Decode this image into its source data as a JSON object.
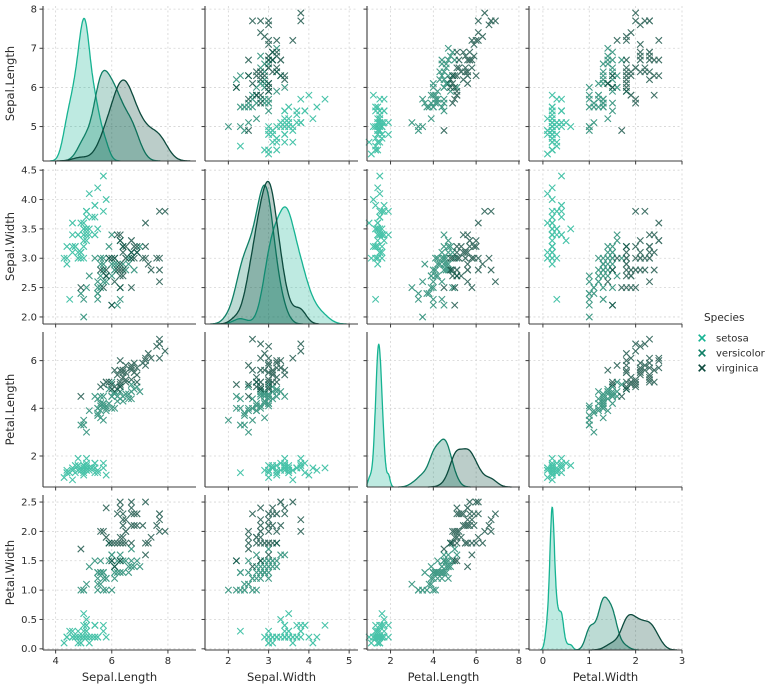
{
  "chart_data": {
    "type": "scatter",
    "subtype": "pairplot-matrix",
    "diagonal": "kde",
    "marker": "x",
    "grid": "dashed",
    "title": "",
    "colors": {
      "grid": "#d4d4d4",
      "spine": "#3d3d3d",
      "text": "#2b2b2b"
    },
    "legend": {
      "title": "Species",
      "position": "right"
    },
    "variables": [
      "Sepal.Length",
      "Sepal.Width",
      "Petal.Length",
      "Petal.Width"
    ],
    "axes": [
      {
        "label": "Sepal.Length",
        "x_lim": [
          3.55,
          9.0
        ],
        "x_ticks": [
          4,
          6,
          8
        ],
        "x_tick_labels": [
          "4",
          "6",
          "8"
        ],
        "y_lim": [
          4.12,
          8.08
        ],
        "y_ticks": [
          5,
          6,
          7,
          8
        ],
        "y_tick_labels": [
          "5",
          "6",
          "7",
          "8"
        ]
      },
      {
        "label": "Sepal.Width",
        "x_lim": [
          1.42,
          5.22
        ],
        "x_ticks": [
          2,
          3,
          4,
          5
        ],
        "x_tick_labels": [
          "2",
          "3",
          "4",
          "5"
        ],
        "y_lim": [
          1.88,
          4.52
        ],
        "y_ticks": [
          2,
          2.5,
          3,
          3.5,
          4,
          4.5
        ],
        "y_tick_labels": [
          "2.0",
          "2.5",
          "3.0",
          "3.5",
          "4.0",
          "4.5"
        ]
      },
      {
        "label": "Petal.Length",
        "x_lim": [
          0.9,
          8.05
        ],
        "x_ticks": [
          2,
          4,
          6,
          8
        ],
        "x_tick_labels": [
          "2",
          "4",
          "6",
          "8"
        ],
        "y_lim": [
          0.7,
          7.2
        ],
        "y_ticks": [
          2,
          4,
          6
        ],
        "y_tick_labels": [
          "2",
          "4",
          "6"
        ]
      },
      {
        "label": "Petal.Width",
        "x_lim": [
          -0.3,
          3.0
        ],
        "x_ticks": [
          0,
          1,
          2,
          3
        ],
        "x_tick_labels": [
          "0",
          "1",
          "2",
          "3"
        ],
        "y_lim": [
          -0.02,
          2.62
        ],
        "y_ticks": [
          0,
          0.5,
          1,
          1.5,
          2,
          2.5
        ],
        "y_tick_labels": [
          "0.0",
          "0.5",
          "1.0",
          "1.5",
          "2.0",
          "2.5"
        ]
      }
    ],
    "series": [
      {
        "name": "setosa",
        "color": "#16b392",
        "points": [
          [
            5.1,
            3.5,
            1.4,
            0.2
          ],
          [
            4.9,
            3.0,
            1.4,
            0.2
          ],
          [
            4.7,
            3.2,
            1.3,
            0.2
          ],
          [
            4.6,
            3.1,
            1.5,
            0.2
          ],
          [
            5.0,
            3.6,
            1.4,
            0.2
          ],
          [
            5.4,
            3.9,
            1.7,
            0.4
          ],
          [
            4.6,
            3.4,
            1.4,
            0.3
          ],
          [
            5.0,
            3.4,
            1.5,
            0.2
          ],
          [
            4.4,
            2.9,
            1.4,
            0.2
          ],
          [
            4.9,
            3.1,
            1.5,
            0.1
          ],
          [
            5.4,
            3.7,
            1.5,
            0.2
          ],
          [
            4.8,
            3.4,
            1.6,
            0.2
          ],
          [
            4.8,
            3.0,
            1.4,
            0.1
          ],
          [
            4.3,
            3.0,
            1.1,
            0.1
          ],
          [
            5.8,
            4.0,
            1.2,
            0.2
          ],
          [
            5.7,
            4.4,
            1.5,
            0.4
          ],
          [
            5.4,
            3.9,
            1.3,
            0.4
          ],
          [
            5.1,
            3.5,
            1.4,
            0.3
          ],
          [
            5.7,
            3.8,
            1.7,
            0.3
          ],
          [
            5.1,
            3.8,
            1.5,
            0.3
          ],
          [
            5.4,
            3.4,
            1.7,
            0.2
          ],
          [
            5.1,
            3.7,
            1.5,
            0.4
          ],
          [
            4.6,
            3.6,
            1.0,
            0.2
          ],
          [
            5.1,
            3.3,
            1.7,
            0.5
          ],
          [
            4.8,
            3.4,
            1.9,
            0.2
          ],
          [
            5.0,
            3.0,
            1.6,
            0.2
          ],
          [
            5.0,
            3.4,
            1.6,
            0.4
          ],
          [
            5.2,
            3.5,
            1.5,
            0.2
          ],
          [
            5.2,
            3.4,
            1.4,
            0.2
          ],
          [
            4.7,
            3.2,
            1.6,
            0.2
          ],
          [
            4.8,
            3.1,
            1.6,
            0.2
          ],
          [
            5.4,
            3.4,
            1.5,
            0.4
          ],
          [
            5.2,
            4.1,
            1.5,
            0.1
          ],
          [
            5.5,
            4.2,
            1.4,
            0.2
          ],
          [
            4.9,
            3.1,
            1.5,
            0.2
          ],
          [
            5.0,
            3.2,
            1.2,
            0.2
          ],
          [
            5.5,
            3.5,
            1.3,
            0.2
          ],
          [
            4.9,
            3.6,
            1.4,
            0.1
          ],
          [
            4.4,
            3.0,
            1.3,
            0.2
          ],
          [
            5.1,
            3.4,
            1.5,
            0.2
          ],
          [
            5.0,
            3.5,
            1.3,
            0.3
          ],
          [
            4.5,
            2.3,
            1.3,
            0.3
          ],
          [
            4.4,
            3.2,
            1.3,
            0.2
          ],
          [
            5.0,
            3.5,
            1.6,
            0.6
          ],
          [
            5.1,
            3.8,
            1.9,
            0.4
          ],
          [
            4.8,
            3.0,
            1.4,
            0.3
          ],
          [
            5.1,
            3.8,
            1.6,
            0.2
          ],
          [
            4.6,
            3.2,
            1.4,
            0.2
          ],
          [
            5.3,
            3.7,
            1.5,
            0.2
          ],
          [
            5.0,
            3.3,
            1.4,
            0.2
          ]
        ]
      },
      {
        "name": "versicolor",
        "color": "#0f7f66",
        "points": [
          [
            7.0,
            3.2,
            4.7,
            1.4
          ],
          [
            6.4,
            3.2,
            4.5,
            1.5
          ],
          [
            6.9,
            3.1,
            4.9,
            1.5
          ],
          [
            5.5,
            2.3,
            4.0,
            1.3
          ],
          [
            6.5,
            2.8,
            4.6,
            1.5
          ],
          [
            5.7,
            2.8,
            4.5,
            1.3
          ],
          [
            6.3,
            3.3,
            4.7,
            1.6
          ],
          [
            4.9,
            2.4,
            3.3,
            1.0
          ],
          [
            6.6,
            2.9,
            4.6,
            1.3
          ],
          [
            5.2,
            2.7,
            3.9,
            1.4
          ],
          [
            5.0,
            2.0,
            3.5,
            1.0
          ],
          [
            5.9,
            3.0,
            4.2,
            1.5
          ],
          [
            6.0,
            2.2,
            4.0,
            1.0
          ],
          [
            6.1,
            2.9,
            4.7,
            1.4
          ],
          [
            5.6,
            2.9,
            3.6,
            1.3
          ],
          [
            6.7,
            3.1,
            4.4,
            1.4
          ],
          [
            5.6,
            3.0,
            4.5,
            1.5
          ],
          [
            5.8,
            2.7,
            4.1,
            1.0
          ],
          [
            6.2,
            2.2,
            4.5,
            1.5
          ],
          [
            5.6,
            2.5,
            3.9,
            1.1
          ],
          [
            5.9,
            3.2,
            4.8,
            1.8
          ],
          [
            6.1,
            2.8,
            4.0,
            1.3
          ],
          [
            6.3,
            2.5,
            4.9,
            1.5
          ],
          [
            6.1,
            2.8,
            4.7,
            1.2
          ],
          [
            6.4,
            2.9,
            4.3,
            1.3
          ],
          [
            6.6,
            3.0,
            4.4,
            1.4
          ],
          [
            6.8,
            2.8,
            4.8,
            1.4
          ],
          [
            6.7,
            3.0,
            5.0,
            1.7
          ],
          [
            6.0,
            2.9,
            4.5,
            1.5
          ],
          [
            5.7,
            2.6,
            3.5,
            1.0
          ],
          [
            5.5,
            2.4,
            3.8,
            1.1
          ],
          [
            5.5,
            2.4,
            3.7,
            1.0
          ],
          [
            5.8,
            2.7,
            3.9,
            1.2
          ],
          [
            6.0,
            2.7,
            5.1,
            1.6
          ],
          [
            5.4,
            3.0,
            4.5,
            1.5
          ],
          [
            6.0,
            3.4,
            4.5,
            1.6
          ],
          [
            6.7,
            3.1,
            4.7,
            1.5
          ],
          [
            6.3,
            2.3,
            4.4,
            1.3
          ],
          [
            5.6,
            3.0,
            4.1,
            1.3
          ],
          [
            5.5,
            2.5,
            4.0,
            1.3
          ],
          [
            5.5,
            2.6,
            4.4,
            1.2
          ],
          [
            6.1,
            3.0,
            4.6,
            1.4
          ],
          [
            5.8,
            2.6,
            4.0,
            1.2
          ],
          [
            5.0,
            2.3,
            3.3,
            1.0
          ],
          [
            5.6,
            2.7,
            4.2,
            1.3
          ],
          [
            5.7,
            3.0,
            4.2,
            1.2
          ],
          [
            5.7,
            2.9,
            4.2,
            1.3
          ],
          [
            6.2,
            2.9,
            4.3,
            1.3
          ],
          [
            5.1,
            2.5,
            3.0,
            1.1
          ],
          [
            5.7,
            2.8,
            4.1,
            1.3
          ]
        ]
      },
      {
        "name": "virginica",
        "color": "#0c4a3d",
        "points": [
          [
            6.3,
            3.3,
            6.0,
            2.5
          ],
          [
            5.8,
            2.7,
            5.1,
            1.9
          ],
          [
            7.1,
            3.0,
            5.9,
            2.1
          ],
          [
            6.3,
            2.9,
            5.6,
            1.8
          ],
          [
            6.5,
            3.0,
            5.8,
            2.2
          ],
          [
            7.6,
            3.0,
            6.6,
            2.1
          ],
          [
            4.9,
            2.5,
            4.5,
            1.7
          ],
          [
            7.3,
            2.9,
            6.3,
            1.8
          ],
          [
            6.7,
            2.5,
            5.8,
            1.8
          ],
          [
            7.2,
            3.6,
            6.1,
            2.5
          ],
          [
            6.5,
            3.2,
            5.1,
            2.0
          ],
          [
            6.4,
            2.7,
            5.3,
            1.9
          ],
          [
            6.8,
            3.0,
            5.5,
            2.1
          ],
          [
            5.7,
            2.5,
            5.0,
            2.0
          ],
          [
            5.8,
            2.8,
            5.1,
            2.4
          ],
          [
            6.4,
            3.2,
            5.3,
            2.3
          ],
          [
            6.5,
            3.0,
            5.5,
            1.8
          ],
          [
            7.7,
            3.8,
            6.7,
            2.2
          ],
          [
            7.7,
            2.6,
            6.9,
            2.3
          ],
          [
            6.0,
            2.2,
            5.0,
            1.5
          ],
          [
            6.9,
            3.2,
            5.7,
            2.3
          ],
          [
            5.6,
            2.8,
            4.9,
            2.0
          ],
          [
            7.7,
            2.8,
            6.7,
            2.0
          ],
          [
            6.3,
            2.7,
            4.9,
            1.8
          ],
          [
            6.7,
            3.3,
            5.7,
            2.1
          ],
          [
            7.2,
            3.2,
            6.0,
            1.8
          ],
          [
            6.2,
            2.8,
            4.8,
            1.8
          ],
          [
            6.1,
            3.0,
            4.9,
            1.8
          ],
          [
            6.4,
            2.8,
            5.6,
            2.1
          ],
          [
            7.2,
            3.0,
            5.8,
            1.6
          ],
          [
            7.4,
            2.8,
            6.1,
            1.9
          ],
          [
            7.9,
            3.8,
            6.4,
            2.0
          ],
          [
            6.4,
            2.8,
            5.6,
            2.2
          ],
          [
            6.3,
            2.8,
            5.1,
            1.5
          ],
          [
            6.1,
            2.6,
            5.6,
            1.4
          ],
          [
            7.7,
            3.0,
            6.1,
            2.3
          ],
          [
            6.3,
            3.4,
            5.6,
            2.4
          ],
          [
            6.4,
            3.1,
            5.5,
            1.8
          ],
          [
            6.0,
            3.0,
            4.8,
            1.8
          ],
          [
            6.9,
            3.1,
            5.4,
            2.1
          ],
          [
            6.7,
            3.1,
            5.6,
            2.4
          ],
          [
            6.9,
            3.1,
            5.1,
            2.3
          ],
          [
            5.8,
            2.7,
            5.1,
            1.9
          ],
          [
            6.8,
            3.2,
            5.9,
            2.3
          ],
          [
            6.7,
            3.3,
            5.7,
            2.5
          ],
          [
            6.7,
            3.0,
            5.2,
            2.3
          ],
          [
            6.3,
            2.5,
            5.0,
            1.9
          ],
          [
            6.5,
            3.0,
            5.2,
            2.0
          ],
          [
            6.2,
            3.4,
            5.4,
            2.3
          ],
          [
            5.9,
            3.0,
            5.1,
            1.8
          ]
        ]
      }
    ]
  }
}
